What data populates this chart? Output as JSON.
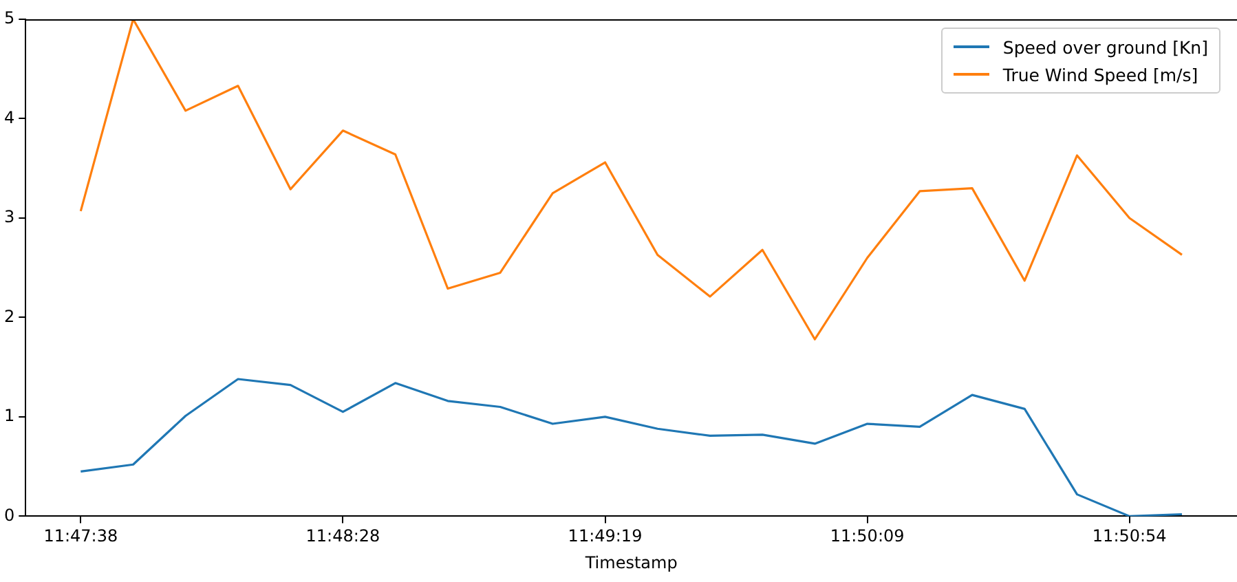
{
  "chart_data": {
    "type": "line",
    "xlabel": "Timestamp",
    "categories": [
      "11:47:38",
      null,
      null,
      null,
      null,
      "11:48:28",
      null,
      null,
      null,
      null,
      "11:49:19",
      null,
      null,
      null,
      null,
      "11:50:09",
      null,
      null,
      null,
      null,
      "11:50:54",
      null
    ],
    "series": [
      {
        "name": "Speed over ground [Kn]",
        "color": "#1f77b4",
        "values": [
          0.45,
          0.52,
          1.01,
          1.38,
          1.32,
          1.05,
          1.34,
          1.16,
          1.1,
          0.93,
          1.0,
          0.88,
          0.81,
          0.82,
          0.73,
          0.93,
          0.9,
          1.22,
          1.08,
          0.22,
          0.0,
          0.02
        ]
      },
      {
        "name": "True Wind Speed [m/s]",
        "color": "#ff7f0e",
        "values": [
          3.07,
          5.0,
          4.08,
          4.33,
          3.29,
          3.88,
          3.64,
          2.29,
          2.45,
          3.25,
          3.56,
          2.63,
          2.21,
          2.68,
          1.78,
          2.6,
          3.27,
          3.3,
          2.37,
          3.63,
          3.0,
          2.63
        ]
      }
    ],
    "ylim": [
      0,
      5
    ],
    "yticks": [
      0,
      1,
      2,
      3,
      4,
      5
    ],
    "grid": false,
    "legend": "top right",
    "marker": "none",
    "line_style": "solid"
  }
}
